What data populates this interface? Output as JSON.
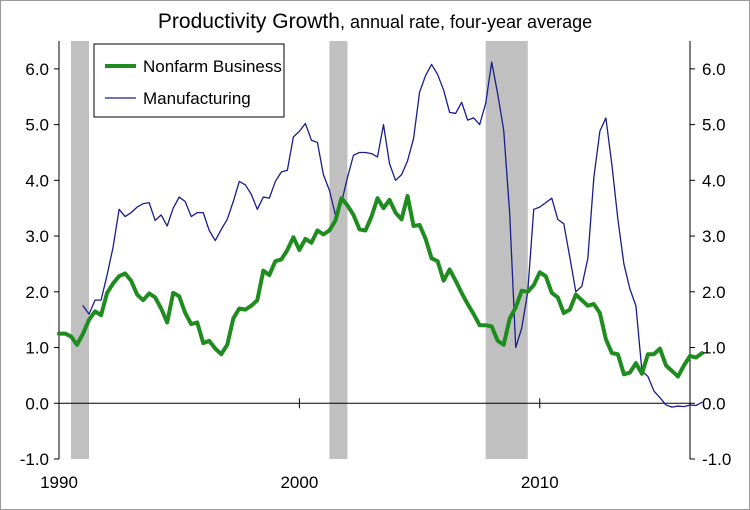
{
  "chart_data": {
    "type": "line",
    "title": "Productivity Growth",
    "subtitle": ", annual rate, four-year average",
    "xlim": [
      1990.0,
      2016.25
    ],
    "ylim": [
      -1.0,
      6.5
    ],
    "y_ticks": [
      "-1.0",
      "0.0",
      "1.0",
      "2.0",
      "3.0",
      "4.0",
      "5.0",
      "6.0"
    ],
    "x_ticks": [
      "1990",
      "2000",
      "2010"
    ],
    "x_tick_values": [
      1990,
      2000,
      2010
    ],
    "y_tick_values": [
      -1,
      0,
      1,
      2,
      3,
      4,
      5,
      6
    ],
    "recessions": [
      [
        1990.5,
        1991.25
      ],
      [
        2001.25,
        2002.0
      ],
      [
        2007.75,
        2009.5
      ]
    ],
    "legend": {
      "position": "top-left"
    },
    "series": [
      {
        "name": "Nonfarm Business",
        "color": "#1e8c1e",
        "width": 4,
        "points": [
          [
            1990.0,
            1.25
          ],
          [
            1990.25,
            1.25
          ],
          [
            1990.5,
            1.2
          ],
          [
            1990.75,
            1.05
          ],
          [
            1991.0,
            1.25
          ],
          [
            1991.25,
            1.5
          ],
          [
            1991.5,
            1.65
          ],
          [
            1991.75,
            1.58
          ],
          [
            1992.0,
            1.98
          ],
          [
            1992.25,
            2.15
          ],
          [
            1992.5,
            2.28
          ],
          [
            1992.75,
            2.33
          ],
          [
            1993.0,
            2.2
          ],
          [
            1993.25,
            1.95
          ],
          [
            1993.5,
            1.85
          ],
          [
            1993.75,
            1.97
          ],
          [
            1994.0,
            1.9
          ],
          [
            1994.25,
            1.7
          ],
          [
            1994.5,
            1.45
          ],
          [
            1994.75,
            1.98
          ],
          [
            1995.0,
            1.92
          ],
          [
            1995.25,
            1.62
          ],
          [
            1995.5,
            1.42
          ],
          [
            1995.75,
            1.45
          ],
          [
            1996.0,
            1.08
          ],
          [
            1996.25,
            1.12
          ],
          [
            1996.5,
            0.98
          ],
          [
            1996.75,
            0.88
          ],
          [
            1997.0,
            1.05
          ],
          [
            1997.25,
            1.52
          ],
          [
            1997.5,
            1.7
          ],
          [
            1997.75,
            1.68
          ],
          [
            1998.0,
            1.75
          ],
          [
            1998.25,
            1.85
          ],
          [
            1998.5,
            2.38
          ],
          [
            1998.75,
            2.3
          ],
          [
            1999.0,
            2.55
          ],
          [
            1999.25,
            2.58
          ],
          [
            1999.5,
            2.75
          ],
          [
            1999.75,
            2.98
          ],
          [
            2000.0,
            2.75
          ],
          [
            2000.25,
            2.95
          ],
          [
            2000.5,
            2.88
          ],
          [
            2000.75,
            3.1
          ],
          [
            2001.0,
            3.03
          ],
          [
            2001.25,
            3.1
          ],
          [
            2001.5,
            3.28
          ],
          [
            2001.75,
            3.68
          ],
          [
            2002.0,
            3.55
          ],
          [
            2002.25,
            3.38
          ],
          [
            2002.5,
            3.12
          ],
          [
            2002.75,
            3.1
          ],
          [
            2003.0,
            3.35
          ],
          [
            2003.25,
            3.68
          ],
          [
            2003.5,
            3.5
          ],
          [
            2003.75,
            3.65
          ],
          [
            2004.0,
            3.42
          ],
          [
            2004.25,
            3.3
          ],
          [
            2004.5,
            3.72
          ],
          [
            2004.75,
            3.18
          ],
          [
            2005.0,
            3.2
          ],
          [
            2005.25,
            2.95
          ],
          [
            2005.5,
            2.6
          ],
          [
            2005.75,
            2.55
          ],
          [
            2006.0,
            2.2
          ],
          [
            2006.25,
            2.4
          ],
          [
            2006.5,
            2.2
          ],
          [
            2006.75,
            1.98
          ],
          [
            2007.0,
            1.78
          ],
          [
            2007.25,
            1.6
          ],
          [
            2007.5,
            1.4
          ],
          [
            2007.75,
            1.4
          ],
          [
            2008.0,
            1.38
          ],
          [
            2008.25,
            1.12
          ],
          [
            2008.5,
            1.05
          ],
          [
            2008.75,
            1.52
          ],
          [
            2009.0,
            1.72
          ],
          [
            2009.25,
            2.02
          ],
          [
            2009.5,
            2.0
          ],
          [
            2009.75,
            2.12
          ],
          [
            2010.0,
            2.35
          ],
          [
            2010.25,
            2.28
          ],
          [
            2010.5,
            1.98
          ],
          [
            2010.75,
            1.9
          ],
          [
            2011.0,
            1.62
          ],
          [
            2011.25,
            1.68
          ],
          [
            2011.5,
            1.95
          ],
          [
            2011.75,
            1.85
          ],
          [
            2012.0,
            1.75
          ],
          [
            2012.25,
            1.78
          ],
          [
            2012.5,
            1.62
          ],
          [
            2012.75,
            1.15
          ],
          [
            2013.0,
            0.9
          ],
          [
            2013.25,
            0.88
          ],
          [
            2013.5,
            0.52
          ],
          [
            2013.75,
            0.55
          ],
          [
            2014.0,
            0.72
          ],
          [
            2014.25,
            0.53
          ],
          [
            2014.5,
            0.88
          ],
          [
            2014.75,
            0.88
          ],
          [
            2015.0,
            0.98
          ],
          [
            2015.25,
            0.68
          ],
          [
            2015.5,
            0.58
          ],
          [
            2015.75,
            0.48
          ],
          [
            2016.0,
            0.68
          ],
          [
            2016.25,
            0.85
          ],
          [
            2016.5,
            0.82
          ],
          [
            2016.75,
            0.9
          ]
        ]
      },
      {
        "name": "Manufacturing",
        "color": "#1c1c8c",
        "width": 1.3,
        "points": [
          [
            1991.0,
            1.75
          ],
          [
            1991.25,
            1.6
          ],
          [
            1991.5,
            1.85
          ],
          [
            1991.75,
            1.85
          ],
          [
            1992.0,
            2.3
          ],
          [
            1992.25,
            2.8
          ],
          [
            1992.5,
            3.48
          ],
          [
            1992.75,
            3.35
          ],
          [
            1993.0,
            3.42
          ],
          [
            1993.25,
            3.52
          ],
          [
            1993.5,
            3.58
          ],
          [
            1993.75,
            3.6
          ],
          [
            1994.0,
            3.28
          ],
          [
            1994.25,
            3.38
          ],
          [
            1994.5,
            3.18
          ],
          [
            1994.75,
            3.5
          ],
          [
            1995.0,
            3.7
          ],
          [
            1995.25,
            3.62
          ],
          [
            1995.5,
            3.35
          ],
          [
            1995.75,
            3.42
          ],
          [
            1996.0,
            3.42
          ],
          [
            1996.25,
            3.1
          ],
          [
            1996.5,
            2.92
          ],
          [
            1996.75,
            3.12
          ],
          [
            1997.0,
            3.3
          ],
          [
            1997.25,
            3.62
          ],
          [
            1997.5,
            3.98
          ],
          [
            1997.75,
            3.92
          ],
          [
            1998.0,
            3.75
          ],
          [
            1998.25,
            3.48
          ],
          [
            1998.5,
            3.7
          ],
          [
            1998.75,
            3.68
          ],
          [
            1999.0,
            3.98
          ],
          [
            1999.25,
            4.15
          ],
          [
            1999.5,
            4.18
          ],
          [
            1999.75,
            4.78
          ],
          [
            2000.0,
            4.88
          ],
          [
            2000.25,
            5.02
          ],
          [
            2000.5,
            4.72
          ],
          [
            2000.75,
            4.68
          ],
          [
            2001.0,
            4.1
          ],
          [
            2001.25,
            3.82
          ],
          [
            2001.5,
            3.38
          ],
          [
            2001.75,
            3.6
          ],
          [
            2002.0,
            4.05
          ],
          [
            2002.25,
            4.45
          ],
          [
            2002.5,
            4.5
          ],
          [
            2002.75,
            4.5
          ],
          [
            2003.0,
            4.48
          ],
          [
            2003.25,
            4.42
          ],
          [
            2003.5,
            5.0
          ],
          [
            2003.75,
            4.3
          ],
          [
            2004.0,
            4.0
          ],
          [
            2004.25,
            4.1
          ],
          [
            2004.5,
            4.35
          ],
          [
            2004.75,
            4.75
          ],
          [
            2005.0,
            5.58
          ],
          [
            2005.25,
            5.88
          ],
          [
            2005.5,
            6.08
          ],
          [
            2005.75,
            5.9
          ],
          [
            2006.0,
            5.62
          ],
          [
            2006.25,
            5.22
          ],
          [
            2006.5,
            5.2
          ],
          [
            2006.75,
            5.4
          ],
          [
            2007.0,
            5.08
          ],
          [
            2007.25,
            5.12
          ],
          [
            2007.5,
            5.0
          ],
          [
            2007.75,
            5.38
          ],
          [
            2008.0,
            6.12
          ],
          [
            2008.25,
            5.55
          ],
          [
            2008.5,
            4.9
          ],
          [
            2008.75,
            3.4
          ],
          [
            2009.0,
            1.0
          ],
          [
            2009.25,
            1.35
          ],
          [
            2009.5,
            2.0
          ],
          [
            2009.75,
            3.48
          ],
          [
            2010.0,
            3.52
          ],
          [
            2010.25,
            3.6
          ],
          [
            2010.5,
            3.68
          ],
          [
            2010.75,
            3.3
          ],
          [
            2011.0,
            3.22
          ],
          [
            2011.25,
            2.62
          ],
          [
            2011.5,
            2.0
          ],
          [
            2011.75,
            2.1
          ],
          [
            2012.0,
            2.6
          ],
          [
            2012.25,
            4.05
          ],
          [
            2012.5,
            4.88
          ],
          [
            2012.75,
            5.12
          ],
          [
            2013.0,
            4.28
          ],
          [
            2013.25,
            3.3
          ],
          [
            2013.5,
            2.5
          ],
          [
            2013.75,
            2.05
          ],
          [
            2014.0,
            1.75
          ],
          [
            2014.25,
            0.58
          ],
          [
            2014.5,
            0.48
          ],
          [
            2014.75,
            0.22
          ],
          [
            2015.0,
            0.1
          ],
          [
            2015.25,
            -0.03
          ],
          [
            2015.5,
            -0.07
          ],
          [
            2015.75,
            -0.05
          ],
          [
            2016.0,
            -0.06
          ],
          [
            2016.25,
            -0.03
          ],
          [
            2016.5,
            -0.04
          ],
          [
            2016.75,
            0.02
          ]
        ]
      }
    ]
  }
}
